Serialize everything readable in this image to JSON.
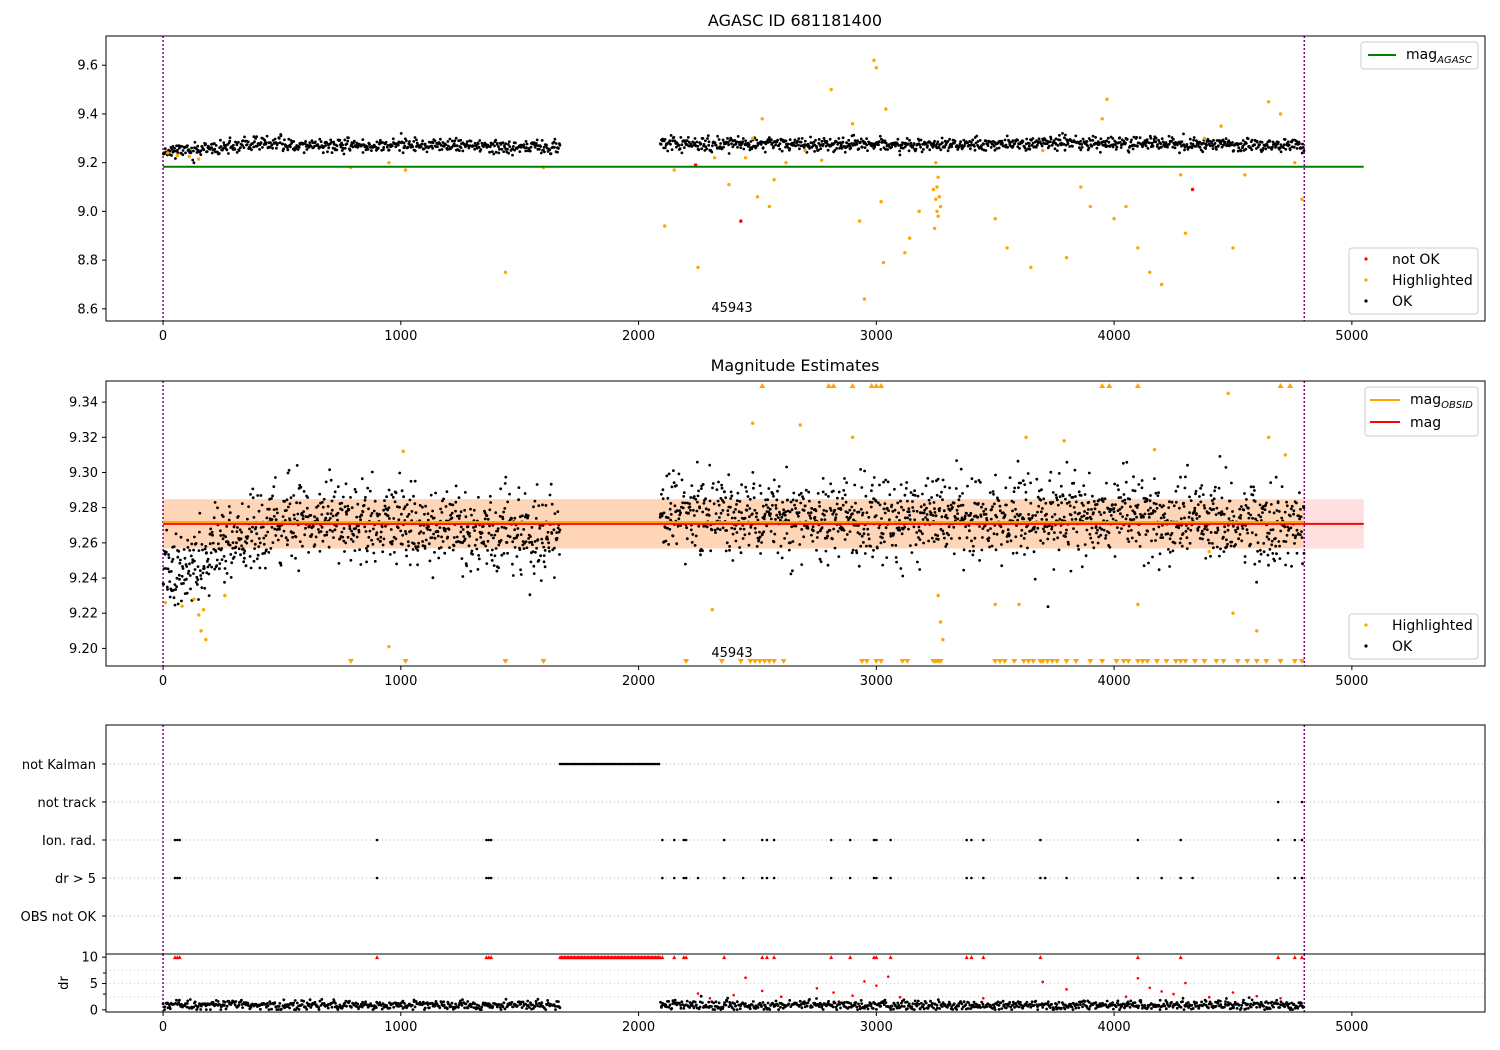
{
  "chart_data": [
    {
      "type": "scatter",
      "title": "AGASC ID 681181400",
      "xlim": [
        -240,
        5560
      ],
      "ylim": [
        8.55,
        9.72
      ],
      "x_ticks": [
        "0",
        "1000",
        "2000",
        "3000",
        "4000",
        "5000"
      ],
      "y_ticks": [
        "8.6",
        "8.8",
        "9.0",
        "9.2",
        "9.4",
        "9.6"
      ],
      "obsid_label": "45943",
      "legend_top": {
        "label": "mag",
        "subscript": "AGASC"
      },
      "legend_bottom": [
        "not OK",
        "Highlighted",
        "OK"
      ],
      "reference_line": {
        "name": "mag_AGASC",
        "y": 9.183,
        "x_range": [
          0,
          5050
        ],
        "color": "#008000"
      },
      "vertical_markers": [
        0,
        4800
      ],
      "ok_segments": [
        {
          "x_range": [
            0,
            1670
          ],
          "center": [
            [
              0,
              9.248
            ],
            [
              200,
              9.255
            ],
            [
              400,
              9.278
            ],
            [
              700,
              9.27
            ],
            [
              1000,
              9.272
            ],
            [
              1300,
              9.268
            ],
            [
              1670,
              9.265
            ]
          ],
          "spread": 0.014,
          "count": 600
        },
        {
          "x_range": [
            2090,
            4800
          ],
          "center": [
            [
              2090,
              9.278
            ],
            [
              3000,
              9.275
            ],
            [
              4000,
              9.28
            ],
            [
              4800,
              9.268
            ]
          ],
          "spread": 0.014,
          "count": 1000
        }
      ],
      "highlighted_points": [
        [
          20,
          9.24
        ],
        [
          60,
          9.23
        ],
        [
          110,
          9.225
        ],
        [
          150,
          9.215
        ],
        [
          790,
          9.18
        ],
        [
          950,
          9.2
        ],
        [
          1020,
          9.17
        ],
        [
          1440,
          8.75
        ],
        [
          1600,
          9.18
        ],
        [
          2110,
          8.94
        ],
        [
          2150,
          9.17
        ],
        [
          2250,
          8.77
        ],
        [
          2320,
          9.22
        ],
        [
          2380,
          9.11
        ],
        [
          2450,
          9.22
        ],
        [
          2480,
          9.3
        ],
        [
          2500,
          9.06
        ],
        [
          2520,
          9.38
        ],
        [
          2550,
          9.02
        ],
        [
          2570,
          9.13
        ],
        [
          2620,
          9.2
        ],
        [
          2700,
          9.25
        ],
        [
          2770,
          9.21
        ],
        [
          2810,
          9.5
        ],
        [
          2900,
          9.36
        ],
        [
          2930,
          8.96
        ],
        [
          2950,
          8.64
        ],
        [
          2990,
          9.62
        ],
        [
          3000,
          9.59
        ],
        [
          3020,
          9.04
        ],
        [
          3030,
          8.79
        ],
        [
          3040,
          9.42
        ],
        [
          3120,
          8.83
        ],
        [
          3140,
          8.89
        ],
        [
          3180,
          9.0
        ],
        [
          3240,
          9.09
        ],
        [
          3250,
          9.05
        ],
        [
          3255,
          9.0
        ],
        [
          3260,
          8.98
        ],
        [
          3265,
          9.06
        ],
        [
          3270,
          9.02
        ],
        [
          3255,
          9.1
        ],
        [
          3260,
          9.14
        ],
        [
          3245,
          8.93
        ],
        [
          3250,
          9.2
        ],
        [
          3500,
          8.97
        ],
        [
          3550,
          8.85
        ],
        [
          3650,
          8.77
        ],
        [
          3700,
          9.25
        ],
        [
          3800,
          8.81
        ],
        [
          3860,
          9.1
        ],
        [
          3900,
          9.02
        ],
        [
          3950,
          9.38
        ],
        [
          3970,
          9.46
        ],
        [
          4000,
          8.97
        ],
        [
          4050,
          9.02
        ],
        [
          4100,
          8.85
        ],
        [
          4150,
          8.75
        ],
        [
          4200,
          8.7
        ],
        [
          4280,
          9.15
        ],
        [
          4300,
          8.91
        ],
        [
          4380,
          9.3
        ],
        [
          4450,
          9.35
        ],
        [
          4500,
          8.85
        ],
        [
          4550,
          9.15
        ],
        [
          4650,
          9.45
        ],
        [
          4700,
          9.4
        ],
        [
          4760,
          9.2
        ],
        [
          4790,
          9.05
        ]
      ],
      "not_ok_points": [
        [
          2240,
          9.19
        ],
        [
          2430,
          8.96
        ],
        [
          4330,
          9.09
        ]
      ]
    },
    {
      "type": "scatter",
      "title": "Magnitude Estimates",
      "xlim": [
        -240,
        5560
      ],
      "ylim": [
        9.19,
        9.352
      ],
      "x_ticks": [
        "0",
        "1000",
        "2000",
        "3000",
        "4000",
        "5000"
      ],
      "y_ticks": [
        "9.20",
        "9.22",
        "9.24",
        "9.26",
        "9.28",
        "9.30",
        "9.32",
        "9.34"
      ],
      "obsid_label": "45943",
      "legend_top": [
        {
          "label": "mag",
          "subscript": "OBSID",
          "color": "#ffa500"
        },
        {
          "label": "mag",
          "color": "#ff0000"
        }
      ],
      "legend_bottom": [
        "Highlighted",
        "OK"
      ],
      "mag_band": {
        "y": 9.2708,
        "low": 9.2568,
        "high": 9.2848,
        "x_range": [
          0,
          5050
        ]
      },
      "mag_obsid_band": {
        "y": 9.2718,
        "low": 9.2568,
        "high": 9.2848,
        "x_range": [
          0,
          4800
        ]
      },
      "vertical_markers": [
        0,
        4800
      ],
      "ok_segments": [
        {
          "x_range": [
            0,
            1670
          ],
          "center": [
            [
              0,
              9.245
            ],
            [
              150,
              9.248
            ],
            [
              300,
              9.262
            ],
            [
              450,
              9.272
            ],
            [
              700,
              9.272
            ],
            [
              1000,
              9.27
            ],
            [
              1300,
              9.266
            ],
            [
              1670,
              9.265
            ]
          ],
          "spread": 0.011,
          "count": 900
        },
        {
          "x_range": [
            2090,
            4800
          ],
          "center": [
            [
              2090,
              9.278
            ],
            [
              3000,
              9.272
            ],
            [
              4000,
              9.276
            ],
            [
              4800,
              9.268
            ]
          ],
          "spread": 0.011,
          "count": 1500
        }
      ],
      "highlighted_points": [
        [
          10,
          9.226
        ],
        [
          80,
          9.224
        ],
        [
          130,
          9.228
        ],
        [
          150,
          9.219
        ],
        [
          160,
          9.21
        ],
        [
          170,
          9.222
        ],
        [
          180,
          9.205
        ],
        [
          260,
          9.23
        ],
        [
          950,
          9.201
        ],
        [
          1010,
          9.312
        ],
        [
          2310,
          9.222
        ],
        [
          2480,
          9.328
        ],
        [
          2680,
          9.327
        ],
        [
          2900,
          9.32
        ],
        [
          3260,
          9.23
        ],
        [
          3270,
          9.215
        ],
        [
          3280,
          9.205
        ],
        [
          3500,
          9.225
        ],
        [
          3600,
          9.225
        ],
        [
          3630,
          9.32
        ],
        [
          3790,
          9.318
        ],
        [
          4100,
          9.225
        ],
        [
          4170,
          9.313
        ],
        [
          4400,
          9.255
        ],
        [
          4480,
          9.345
        ],
        [
          4500,
          9.22
        ],
        [
          4600,
          9.21
        ],
        [
          4650,
          9.32
        ],
        [
          4720,
          9.31
        ]
      ],
      "above_range_x": [
        2520,
        2800,
        2820,
        2900,
        2980,
        3000,
        3020,
        3950,
        3980,
        4100,
        4700,
        4740
      ],
      "below_range_x": [
        790,
        1020,
        1440,
        1600,
        2200,
        2350,
        2430,
        2470,
        2490,
        2510,
        2530,
        2550,
        2570,
        2610,
        2940,
        2960,
        3000,
        3020,
        3110,
        3130,
        3240,
        3250,
        3260,
        3270,
        3500,
        3520,
        3540,
        3580,
        3620,
        3640,
        3660,
        3690,
        3700,
        3720,
        3740,
        3760,
        3800,
        3840,
        3900,
        3950,
        4010,
        4040,
        4060,
        4100,
        4120,
        4140,
        4180,
        4220,
        4260,
        4280,
        4300,
        4340,
        4380,
        4430,
        4460,
        4520,
        4560,
        4600,
        4640,
        4700,
        4760,
        4790
      ]
    },
    {
      "type": "scatter",
      "xlim": [
        -240,
        5560
      ],
      "categories": [
        "not Kalman",
        "not track",
        "Ion. rad.",
        "dr > 5",
        "OBS not OK"
      ],
      "flags": [
        {
          "category": "not Kalman",
          "ranges": [
            [
              1670,
              2090
            ]
          ],
          "points": []
        },
        {
          "category": "not track",
          "ranges": [],
          "points": [
            4690,
            4790
          ]
        },
        {
          "category": "Ion. rad.",
          "ranges": [],
          "points": [
            50,
            60,
            70,
            900,
            1360,
            1370,
            1380,
            2100,
            2150,
            2190,
            2200,
            2360,
            2520,
            2540,
            2570,
            2810,
            2890,
            2990,
            3000,
            3060,
            3380,
            3400,
            3450,
            3690,
            4100,
            4280,
            4690,
            4760,
            4790
          ]
        },
        {
          "category": "dr > 5",
          "ranges": [],
          "points": [
            50,
            60,
            70,
            900,
            1360,
            1370,
            1380,
            2100,
            2150,
            2190,
            2200,
            2250,
            2360,
            2440,
            2520,
            2540,
            2570,
            2810,
            2890,
            2990,
            3000,
            3060,
            3380,
            3400,
            3450,
            3690,
            3710,
            3800,
            4100,
            4200,
            4280,
            4330,
            4690,
            4760,
            4790
          ]
        },
        {
          "category": "OBS not OK",
          "ranges": [],
          "points": []
        }
      ],
      "vertical_markers": [
        0,
        4800
      ]
    },
    {
      "type": "scatter",
      "ylabel": "dr",
      "xlim": [
        -240,
        5560
      ],
      "ylim": [
        -0.4,
        10.6
      ],
      "x_ticks": [
        "0",
        "1000",
        "2000",
        "3000",
        "4000",
        "5000"
      ],
      "y_ticks": [
        "0",
        "5",
        "10"
      ],
      "ok_segments": [
        {
          "x_range": [
            0,
            1670
          ],
          "center": [
            [
              0,
              0.9
            ],
            [
              1670,
              0.9
            ]
          ],
          "spread": 0.45,
          "count": 500
        },
        {
          "x_range": [
            2090,
            4800
          ],
          "center": [
            [
              2090,
              0.9
            ],
            [
              4800,
              0.9
            ]
          ],
          "spread": 0.45,
          "count": 800
        }
      ],
      "clipped_flags": {
        "y": 10,
        "ranges": [
          [
            1670,
            2090
          ]
        ],
        "points": [
          50,
          60,
          70,
          900,
          1360,
          1370,
          1380,
          2100,
          2150,
          2190,
          2200,
          2360,
          2520,
          2540,
          2570,
          2810,
          2890,
          2990,
          3000,
          3060,
          3380,
          3400,
          3450,
          3690,
          4100,
          4280,
          4690,
          4760,
          4790
        ]
      },
      "red_points": [
        [
          2250,
          3.1
        ],
        [
          2300,
          2.2
        ],
        [
          2400,
          2.8
        ],
        [
          2450,
          6.1
        ],
        [
          2520,
          3.6
        ],
        [
          2600,
          2.5
        ],
        [
          2750,
          4.1
        ],
        [
          2820,
          3.3
        ],
        [
          2900,
          2.7
        ],
        [
          2950,
          5.4
        ],
        [
          3000,
          4.6
        ],
        [
          3050,
          6.3
        ],
        [
          3100,
          2.4
        ],
        [
          3450,
          2.2
        ],
        [
          3700,
          5.3
        ],
        [
          3800,
          3.9
        ],
        [
          4050,
          2.5
        ],
        [
          4100,
          6.0
        ],
        [
          4150,
          4.2
        ],
        [
          4200,
          3.5
        ],
        [
          4250,
          3.0
        ],
        [
          4300,
          5.1
        ],
        [
          4400,
          2.4
        ],
        [
          4500,
          3.3
        ],
        [
          4600,
          2.6
        ],
        [
          4700,
          2.2
        ]
      ],
      "vertical_markers": [
        0,
        4800
      ]
    }
  ]
}
